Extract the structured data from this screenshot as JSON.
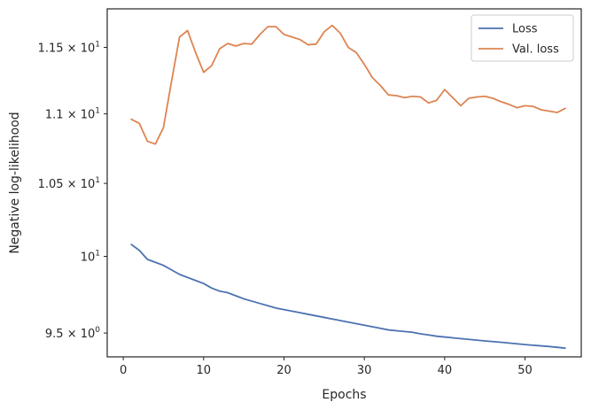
{
  "chart_data": {
    "type": "line",
    "xlabel": "Epochs",
    "ylabel": "Negative log-likelihood",
    "yscale": "log",
    "xlim": [
      -2,
      57
    ],
    "ylim": [
      9.35,
      11.8
    ],
    "grid": false,
    "legend_position": "top-right",
    "x_ticks": [
      {
        "value": 0,
        "label": "0"
      },
      {
        "value": 10,
        "label": "10"
      },
      {
        "value": 20,
        "label": "20"
      },
      {
        "value": 30,
        "label": "30"
      },
      {
        "value": 40,
        "label": "40"
      },
      {
        "value": 50,
        "label": "50"
      }
    ],
    "y_ticks": [
      {
        "value": 9.5,
        "mantissa": "9.5",
        "exp": "0"
      },
      {
        "value": 10,
        "mantissa": "",
        "exp": "1"
      },
      {
        "value": 10.5,
        "mantissa": "1.05",
        "exp": "1"
      },
      {
        "value": 11,
        "mantissa": "1.1",
        "exp": "1"
      },
      {
        "value": 11.5,
        "mantissa": "1.15",
        "exp": "1"
      }
    ],
    "series": [
      {
        "name": "Loss",
        "color": "#4c72b0",
        "x": [
          1,
          2,
          3,
          4,
          5,
          6,
          7,
          8,
          9,
          10,
          11,
          12,
          13,
          14,
          15,
          16,
          17,
          18,
          19,
          20,
          21,
          22,
          23,
          24,
          25,
          26,
          27,
          28,
          29,
          30,
          31,
          32,
          33,
          34,
          35,
          36,
          37,
          38,
          39,
          40,
          41,
          42,
          43,
          44,
          45,
          46,
          47,
          48,
          49,
          50,
          51,
          52,
          53,
          54,
          55
        ],
        "y": [
          10.08,
          10.04,
          9.98,
          9.96,
          9.94,
          9.91,
          9.88,
          9.86,
          9.84,
          9.82,
          9.79,
          9.77,
          9.76,
          9.74,
          9.72,
          9.705,
          9.69,
          9.675,
          9.66,
          9.65,
          9.64,
          9.63,
          9.62,
          9.61,
          9.6,
          9.59,
          9.58,
          9.57,
          9.56,
          9.55,
          9.54,
          9.53,
          9.52,
          9.515,
          9.51,
          9.505,
          9.495,
          9.488,
          9.48,
          9.475,
          9.47,
          9.465,
          9.46,
          9.455,
          9.45,
          9.446,
          9.442,
          9.437,
          9.432,
          9.427,
          9.423,
          9.419,
          9.415,
          9.41,
          9.405
        ]
      },
      {
        "name": "Val. loss",
        "color": "#dd8452",
        "x": [
          1,
          2,
          3,
          4,
          5,
          6,
          7,
          8,
          9,
          10,
          11,
          12,
          13,
          14,
          15,
          16,
          17,
          18,
          19,
          20,
          21,
          22,
          23,
          24,
          25,
          26,
          27,
          28,
          29,
          30,
          31,
          32,
          33,
          34,
          35,
          36,
          37,
          38,
          39,
          40,
          41,
          42,
          43,
          44,
          45,
          46,
          47,
          48,
          49,
          50,
          51,
          52,
          53,
          54,
          55
        ],
        "y": [
          10.96,
          10.93,
          10.8,
          10.78,
          10.9,
          11.24,
          11.58,
          11.63,
          11.46,
          11.31,
          11.36,
          11.49,
          11.53,
          11.51,
          11.53,
          11.525,
          11.6,
          11.66,
          11.66,
          11.6,
          11.58,
          11.56,
          11.52,
          11.525,
          11.62,
          11.67,
          11.61,
          11.5,
          11.46,
          11.37,
          11.27,
          11.21,
          11.14,
          11.135,
          11.12,
          11.13,
          11.125,
          11.08,
          11.1,
          11.18,
          11.12,
          11.06,
          11.115,
          11.125,
          11.13,
          11.115,
          11.09,
          11.07,
          11.045,
          11.06,
          11.055,
          11.03,
          11.02,
          11.01,
          11.04
        ]
      }
    ]
  }
}
